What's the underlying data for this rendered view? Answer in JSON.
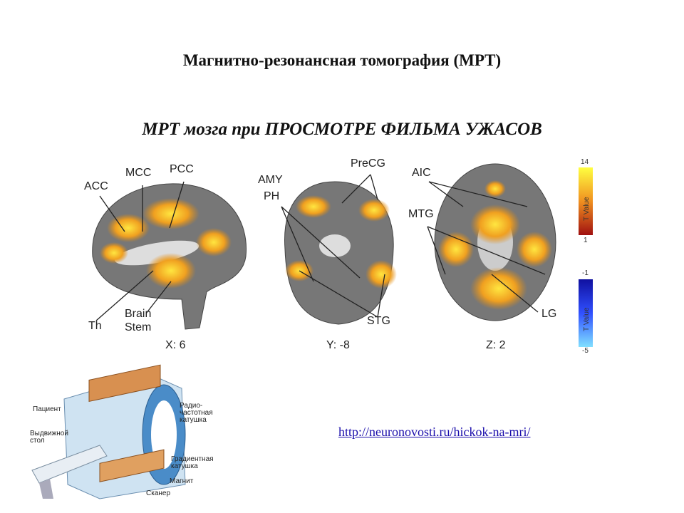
{
  "header": {
    "title": "Магнитно-резонансная томография (МРТ)",
    "subtitle": "МРТ мозга при ПРОСМОТРЕ ФИЛЬМА УЖАСОВ"
  },
  "figure": {
    "panels": [
      {
        "slice": "X: 6",
        "labels": [
          "ACC",
          "MCC",
          "PCC",
          "Th",
          "Brain Stem"
        ]
      },
      {
        "slice": "Y: -8",
        "labels": [
          "AMY",
          "PH",
          "PreCG",
          "STG"
        ]
      },
      {
        "slice": "Z: 2",
        "labels": [
          "AIC",
          "MTG",
          "LG"
        ]
      }
    ],
    "colorbars": [
      {
        "max": "14",
        "label": "T Value",
        "min": "1"
      },
      {
        "max": "-1",
        "label": "T Value",
        "min": "-5"
      }
    ]
  },
  "scanner": {
    "labels": [
      "Пациент",
      "Выдвижной стол",
      "Радио-частотная катушка",
      "Градиентная катушка",
      "Магнит",
      "Сканер"
    ]
  },
  "link": "http://neuronovosti.ru/hickok-na-mri/"
}
